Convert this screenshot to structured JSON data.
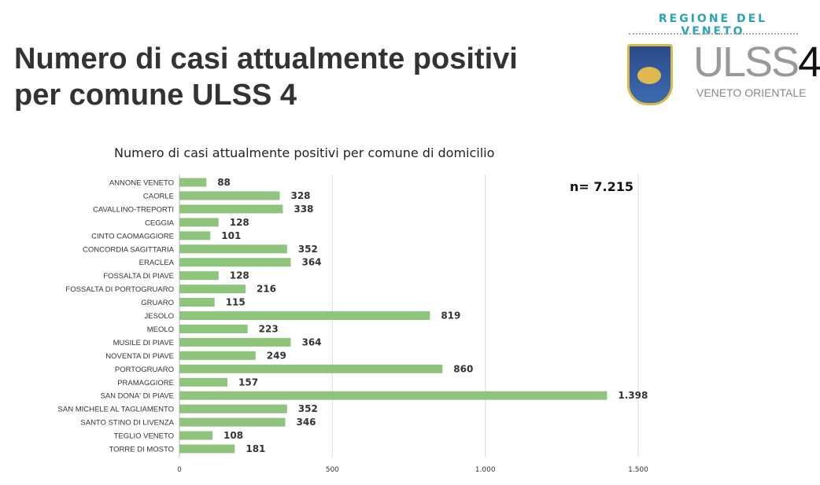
{
  "header": {
    "title_line1": "Numero di casi attualmente positivi",
    "title_line2": "per comune ULSS 4"
  },
  "logo": {
    "region": "REGIONE DEL VENETO",
    "name": "ULSS",
    "number": "4",
    "subtitle": "VENETO ORIENTALE"
  },
  "chart_data": {
    "type": "bar",
    "orientation": "horizontal",
    "title": "Numero di casi attualmente positivi per comune di domicilio",
    "annotation": "n= 7.215",
    "categories": [
      "ANNONE VENETO",
      "CAORLE",
      "CAVALLINO-TREPORTI",
      "CEGGIA",
      "CINTO CAOMAGGIORE",
      "CONCORDIA SAGITTARIA",
      "ERACLEA",
      "FOSSALTA DI PIAVE",
      "FOSSALTA DI PORTOGRUARO",
      "GRUARO",
      "JESOLO",
      "MEOLO",
      "MUSILE DI PIAVE",
      "NOVENTA DI PIAVE",
      "PORTOGRUARO",
      "PRAMAGGIORE",
      "SAN DONA' DI PIAVE",
      "SAN MICHELE AL TAGLIAMENTO",
      "SANTO STINO DI LIVENZA",
      "TEGLIO VENETO",
      "TORRE DI MOSTO"
    ],
    "values": [
      88,
      328,
      338,
      128,
      101,
      352,
      364,
      128,
      216,
      115,
      819,
      223,
      364,
      249,
      860,
      157,
      1398,
      352,
      346,
      108,
      181
    ],
    "value_labels": [
      "88",
      "328",
      "338",
      "128",
      "101",
      "352",
      "364",
      "128",
      "216",
      "115",
      "819",
      "223",
      "364",
      "249",
      "860",
      "157",
      "1.398",
      "352",
      "346",
      "108",
      "181"
    ],
    "xlim": [
      0,
      1500
    ],
    "xticks": [
      0,
      500,
      1000,
      1500
    ],
    "xtick_labels": [
      "0",
      "500",
      "1.000",
      "1.500"
    ],
    "grid": true,
    "bar_color": "#8fc47c"
  }
}
